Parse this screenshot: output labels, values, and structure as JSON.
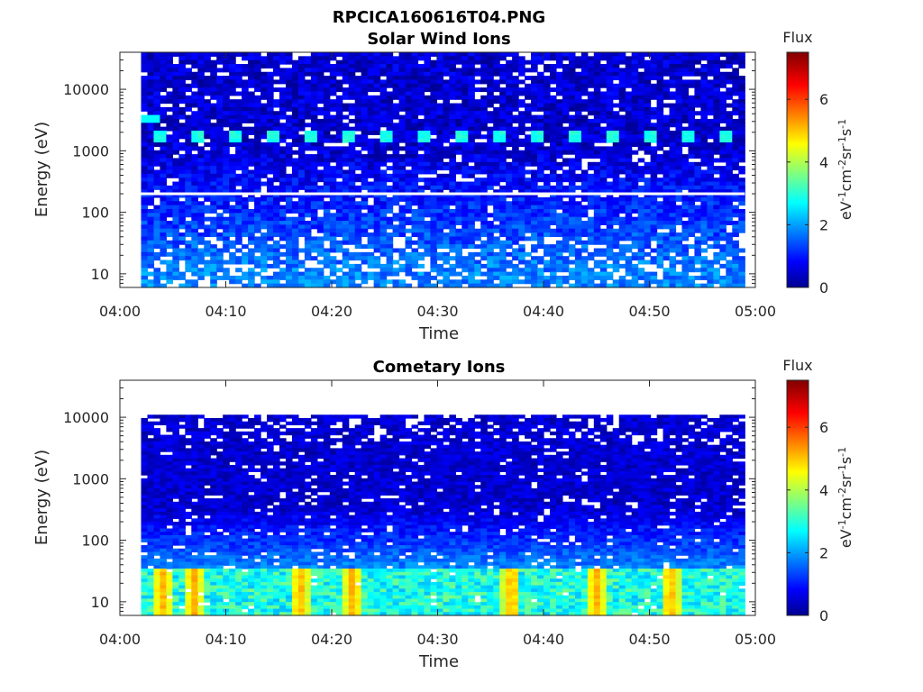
{
  "figure": {
    "title": "RPCICA160616T04.PNG"
  },
  "chart_data": [
    {
      "type": "heatmap",
      "title": "Solar Wind Ions",
      "xlabel": "Time",
      "ylabel": "Energy (eV)",
      "x_ticks": [
        "04:00",
        "04:10",
        "04:20",
        "04:30",
        "04:40",
        "04:50",
        "05:00"
      ],
      "x_range": [
        "04:00",
        "05:00"
      ],
      "y_scale": "log",
      "y_ticks": [
        "10",
        "100",
        "1000",
        "10000"
      ],
      "y_range": [
        6,
        40000
      ],
      "data_time_range": [
        "04:02",
        "04:59"
      ],
      "colorbar": {
        "label": "Flux",
        "unit": "eV-1cm-2sr-1s-1",
        "ticks": [
          "0",
          "2",
          "4",
          "6"
        ],
        "range": [
          0,
          7.5
        ],
        "colormap": "jet"
      },
      "features": {
        "gap_line_energy_ev": 200,
        "bright_band_energy_ev": [
          1300,
          2000
        ],
        "bright_band_flux": 2.8,
        "background_flux_high_energy": 0.6,
        "background_flux_low_energy": 1.9,
        "secondary_band_energy_ev": 3500,
        "secondary_band_time": "04:03"
      }
    },
    {
      "type": "heatmap",
      "title": "Cometary Ions",
      "xlabel": "Time",
      "ylabel": "Energy (eV)",
      "x_ticks": [
        "04:00",
        "04:10",
        "04:20",
        "04:30",
        "04:40",
        "04:50",
        "05:00"
      ],
      "x_range": [
        "04:00",
        "05:00"
      ],
      "y_scale": "log",
      "y_ticks": [
        "10",
        "100",
        "1000",
        "10000"
      ],
      "y_range": [
        6,
        40000
      ],
      "data_time_range": [
        "04:02",
        "04:59"
      ],
      "data_energy_max_ev": 11000,
      "colorbar": {
        "label": "Flux",
        "unit": "eV-1cm-2sr-1s-1",
        "ticks": [
          "0",
          "2",
          "4",
          "6"
        ],
        "range": [
          0,
          7.5
        ],
        "colormap": "jet"
      },
      "features": {
        "low_energy_peak_flux": 5.5,
        "low_energy_band_ev": [
          6,
          35
        ],
        "background_flux_high_energy": 0.6,
        "peak_times": [
          "04:04",
          "04:07",
          "04:17",
          "04:22",
          "04:37",
          "04:45",
          "04:52"
        ]
      }
    }
  ]
}
